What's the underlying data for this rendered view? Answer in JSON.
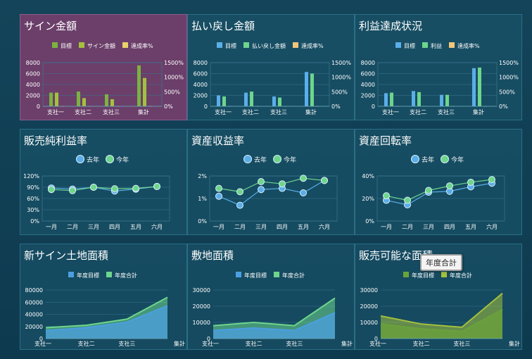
{
  "chart_data": [
    {
      "type": "bar",
      "title": "サイン金額",
      "categories": [
        "支社一",
        "支社二",
        "支社三",
        "集計"
      ],
      "ylim": [
        0,
        8000
      ],
      "yticks": [
        0,
        2000,
        4000,
        6000,
        8000
      ],
      "y2lim": [
        0,
        1500
      ],
      "y2ticks": [
        "0%",
        "500%",
        "1000%",
        "1500%"
      ],
      "colors": [
        "#7bb241",
        "#a4c13d",
        "#e8d26b"
      ],
      "series": [
        {
          "name": "目標",
          "values": [
            2500,
            2700,
            2200,
            7500
          ]
        },
        {
          "name": "サイン金額",
          "values": [
            2500,
            1500,
            1300,
            5200
          ]
        },
        {
          "name": "達成率%",
          "values": [
            5,
            3,
            3,
            5
          ],
          "axis": 2
        }
      ]
    },
    {
      "type": "bar",
      "title": "払い戻し金額",
      "categories": [
        "支社一",
        "支社二",
        "支社三",
        "集計"
      ],
      "ylim": [
        0,
        8000
      ],
      "yticks": [
        0,
        2000,
        4000,
        6000,
        8000
      ],
      "y2lim": [
        0,
        1500
      ],
      "y2ticks": [
        "0%",
        "500%",
        "1000%",
        "1500%"
      ],
      "colors": [
        "#5aaee9",
        "#6dd58c",
        "#f3c57a"
      ],
      "series": [
        {
          "name": "目標",
          "values": [
            2000,
            2500,
            1800,
            6300
          ]
        },
        {
          "name": "払い戻し金額",
          "values": [
            1800,
            2700,
            1600,
            6000
          ]
        },
        {
          "name": "達成率%",
          "values": [
            5,
            5,
            5,
            5
          ],
          "axis": 2
        }
      ]
    },
    {
      "type": "bar",
      "title": "利益達成状況",
      "categories": [
        "支社一",
        "支社二",
        "支社三",
        "集計"
      ],
      "ylim": [
        0,
        8000
      ],
      "yticks": [
        0,
        2000,
        4000,
        6000,
        8000
      ],
      "y2lim": [
        0,
        1500
      ],
      "y2ticks": [
        "0%",
        "500%",
        "1000%",
        "1500%"
      ],
      "colors": [
        "#5aaee9",
        "#6dd58c",
        "#f3c57a"
      ],
      "series": [
        {
          "name": "目標",
          "values": [
            2400,
            2800,
            2100,
            7000
          ]
        },
        {
          "name": "利益",
          "values": [
            2500,
            2600,
            2100,
            7100
          ]
        },
        {
          "name": "達成率%",
          "values": [
            5,
            5,
            5,
            5
          ],
          "axis": 2
        }
      ]
    },
    {
      "type": "line",
      "title": "販売純利益率",
      "categories": [
        "一月",
        "二月",
        "三月",
        "四月",
        "五月",
        "六月"
      ],
      "ylim": [
        0,
        120
      ],
      "yticks": [
        "0%",
        "30%",
        "60%",
        "90%",
        "120%"
      ],
      "colors": [
        "#5aaee9",
        "#6dd58c"
      ],
      "series": [
        {
          "name": "去年",
          "values": [
            88,
            85,
            90,
            80,
            85,
            92
          ]
        },
        {
          "name": "今年",
          "values": [
            84,
            81,
            90,
            86,
            87,
            92
          ]
        }
      ]
    },
    {
      "type": "line",
      "title": "資産収益率",
      "categories": [
        "一月",
        "二月",
        "三月",
        "四月",
        "五月",
        "六月"
      ],
      "ylim": [
        0,
        2
      ],
      "yticks": [
        "0%",
        "1%",
        "2%"
      ],
      "colors": [
        "#5aaee9",
        "#6dd58c"
      ],
      "series": [
        {
          "name": "去年",
          "values": [
            1.1,
            0.7,
            1.4,
            1.45,
            1.25,
            1.8
          ]
        },
        {
          "name": "今年",
          "values": [
            1.45,
            1.3,
            1.75,
            1.65,
            1.9,
            1.8
          ]
        }
      ]
    },
    {
      "type": "line",
      "title": "資産回転率",
      "categories": [
        "一月",
        "二月",
        "三月",
        "四月",
        "五月",
        "六月"
      ],
      "ylim": [
        0,
        50
      ],
      "yticks": [
        "0%",
        "20%",
        "40%"
      ],
      "colors": [
        "#5aaee9",
        "#6dd58c"
      ],
      "series": [
        {
          "name": "去年",
          "values": [
            23,
            18,
            32,
            33,
            38,
            42
          ]
        },
        {
          "name": "今年",
          "values": [
            28,
            23,
            34,
            39,
            43,
            46
          ]
        }
      ]
    },
    {
      "type": "area",
      "title": "新サイン土地面積",
      "categories": [
        "支社一",
        "支社二",
        "支社三",
        "集計"
      ],
      "ylim": [
        0,
        80000
      ],
      "yticks": [
        0,
        20000,
        40000,
        60000,
        80000
      ],
      "colors": [
        "#4b9fe0",
        "#6dd58c"
      ],
      "series": [
        {
          "name": "年度目標",
          "values": [
            13000,
            18000,
            27000,
            54000
          ]
        },
        {
          "name": "年度合計",
          "values": [
            18000,
            22000,
            32000,
            68000
          ]
        }
      ]
    },
    {
      "type": "area",
      "title": "敷地面積",
      "categories": [
        "支社一",
        "支社二",
        "支社三",
        "集計"
      ],
      "ylim": [
        0,
        30000
      ],
      "yticks": [
        0,
        10000,
        20000,
        30000
      ],
      "colors": [
        "#4b9fe0",
        "#6dd58c"
      ],
      "series": [
        {
          "name": "年度目標",
          "values": [
            5000,
            6500,
            5000,
            16000
          ]
        },
        {
          "name": "年度合計",
          "values": [
            8000,
            10000,
            8000,
            25000
          ]
        }
      ]
    },
    {
      "type": "area",
      "title": "販売可能な面積",
      "categories": [
        "支社一",
        "支社二",
        "支社三",
        "集計"
      ],
      "ylim": [
        0,
        30000
      ],
      "yticks": [
        0,
        10000,
        20000,
        30000
      ],
      "colors": [
        "#6aa23a",
        "#a4c13d"
      ],
      "series": [
        {
          "name": "年度目標",
          "values": [
            9000,
            6000,
            4500,
            18000
          ]
        },
        {
          "name": "年度合計",
          "values": [
            14000,
            9000,
            7000,
            28000
          ]
        }
      ]
    }
  ],
  "tooltip": "年度合計"
}
